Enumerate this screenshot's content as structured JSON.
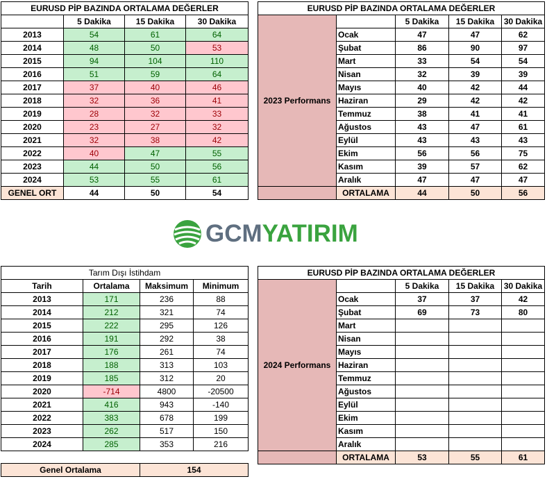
{
  "table1": {
    "title": "EURUSD  PİP BAZINDA ORTALAMA DEĞERLER",
    "headers": [
      "",
      "5 Dakika",
      "15 Dakika",
      "30 Dakika"
    ],
    "rows": [
      {
        "year": "2013",
        "v": [
          "54",
          "61",
          "64"
        ],
        "c": [
          "g",
          "g",
          "g"
        ]
      },
      {
        "year": "2014",
        "v": [
          "48",
          "50",
          "53"
        ],
        "c": [
          "g",
          "g",
          "r"
        ]
      },
      {
        "year": "2015",
        "v": [
          "94",
          "104",
          "110"
        ],
        "c": [
          "g",
          "g",
          "g"
        ]
      },
      {
        "year": "2016",
        "v": [
          "51",
          "59",
          "64"
        ],
        "c": [
          "g",
          "g",
          "g"
        ]
      },
      {
        "year": "2017",
        "v": [
          "37",
          "40",
          "46"
        ],
        "c": [
          "r",
          "r",
          "r"
        ]
      },
      {
        "year": "2018",
        "v": [
          "32",
          "36",
          "41"
        ],
        "c": [
          "r",
          "r",
          "r"
        ]
      },
      {
        "year": "2019",
        "v": [
          "28",
          "32",
          "33"
        ],
        "c": [
          "r",
          "r",
          "r"
        ]
      },
      {
        "year": "2020",
        "v": [
          "23",
          "27",
          "32"
        ],
        "c": [
          "r",
          "r",
          "r"
        ]
      },
      {
        "year": "2021",
        "v": [
          "32",
          "38",
          "42"
        ],
        "c": [
          "r",
          "r",
          "r"
        ]
      },
      {
        "year": "2022",
        "v": [
          "40",
          "47",
          "55"
        ],
        "c": [
          "r",
          "g",
          "g"
        ]
      },
      {
        "year": "2023",
        "v": [
          "44",
          "50",
          "56"
        ],
        "c": [
          "g",
          "g",
          "g"
        ]
      },
      {
        "year": "2024",
        "v": [
          "53",
          "55",
          "61"
        ],
        "c": [
          "g",
          "g",
          "g"
        ]
      }
    ],
    "footer": {
      "label": "GENEL ORT",
      "v": [
        "44",
        "50",
        "54"
      ]
    }
  },
  "table2": {
    "title": "EURUSD  PİP BAZINDA ORTALAMA DEĞERLER",
    "headers": [
      "",
      "",
      "5 Dakika",
      "15 Dakika",
      "30 Dakika"
    ],
    "side_label": "2023 Performans",
    "rows": [
      {
        "m": "Ocak",
        "v": [
          "47",
          "47",
          "62"
        ]
      },
      {
        "m": "Şubat",
        "v": [
          "86",
          "90",
          "97"
        ]
      },
      {
        "m": "Mart",
        "v": [
          "33",
          "54",
          "54"
        ]
      },
      {
        "m": "Nisan",
        "v": [
          "32",
          "39",
          "39"
        ]
      },
      {
        "m": "Mayıs",
        "v": [
          "40",
          "42",
          "44"
        ]
      },
      {
        "m": "Haziran",
        "v": [
          "29",
          "42",
          "42"
        ]
      },
      {
        "m": "Temmuz",
        "v": [
          "38",
          "41",
          "41"
        ]
      },
      {
        "m": "Ağustos",
        "v": [
          "43",
          "47",
          "61"
        ]
      },
      {
        "m": "Eylül",
        "v": [
          "43",
          "43",
          "43"
        ]
      },
      {
        "m": "Ekim",
        "v": [
          "56",
          "56",
          "75"
        ]
      },
      {
        "m": "Kasım",
        "v": [
          "39",
          "57",
          "62"
        ]
      },
      {
        "m": "Aralık",
        "v": [
          "47",
          "47",
          "47"
        ]
      }
    ],
    "footer": {
      "label": "ORTALAMA",
      "v": [
        "44",
        "50",
        "56"
      ]
    }
  },
  "logo": {
    "part1": "GCM",
    "part2": "YATIRIM",
    "color_gray": "#5f6f80",
    "color_green": "#3aa33f"
  },
  "table3": {
    "title": "Tarım Dışı İstihdam",
    "headers": [
      "Tarih",
      "Ortalama",
      "Maksimum",
      "Minimum"
    ],
    "rows": [
      {
        "year": "2013",
        "v": [
          "171",
          "236",
          "88"
        ],
        "c": "g"
      },
      {
        "year": "2014",
        "v": [
          "212",
          "321",
          "74"
        ],
        "c": "g"
      },
      {
        "year": "2015",
        "v": [
          "222",
          "295",
          "126"
        ],
        "c": "g"
      },
      {
        "year": "2016",
        "v": [
          "191",
          "292",
          "38"
        ],
        "c": "g"
      },
      {
        "year": "2017",
        "v": [
          "176",
          "261",
          "74"
        ],
        "c": "g"
      },
      {
        "year": "2018",
        "v": [
          "188",
          "313",
          "103"
        ],
        "c": "g"
      },
      {
        "year": "2019",
        "v": [
          "185",
          "312",
          "20"
        ],
        "c": "g"
      },
      {
        "year": "2020",
        "v": [
          "-714",
          "4800",
          "-20500"
        ],
        "c": "r"
      },
      {
        "year": "2021",
        "v": [
          "416",
          "943",
          "-140"
        ],
        "c": "g"
      },
      {
        "year": "2022",
        "v": [
          "383",
          "678",
          "199"
        ],
        "c": "g"
      },
      {
        "year": "2023",
        "v": [
          "262",
          "517",
          "150"
        ],
        "c": "g"
      },
      {
        "year": "2024",
        "v": [
          "285",
          "353",
          "216"
        ],
        "c": "g"
      }
    ]
  },
  "table4": {
    "title": "EURUSD  PİP BAZINDA ORTALAMA DEĞERLER",
    "headers": [
      "",
      "",
      "5 Dakika",
      "15 Dakika",
      "30 Dakika"
    ],
    "side_label": "2024 Performans",
    "rows": [
      {
        "m": "Ocak",
        "v": [
          "37",
          "37",
          "42"
        ]
      },
      {
        "m": "Şubat",
        "v": [
          "69",
          "73",
          "80"
        ]
      },
      {
        "m": "Mart",
        "v": [
          "",
          "",
          ""
        ]
      },
      {
        "m": "Nisan",
        "v": [
          "",
          "",
          ""
        ]
      },
      {
        "m": "Mayıs",
        "v": [
          "",
          "",
          ""
        ]
      },
      {
        "m": "Haziran",
        "v": [
          "",
          "",
          ""
        ]
      },
      {
        "m": "Temmuz",
        "v": [
          "",
          "",
          ""
        ]
      },
      {
        "m": "Ağustos",
        "v": [
          "",
          "",
          ""
        ]
      },
      {
        "m": "Eylül",
        "v": [
          "",
          "",
          ""
        ]
      },
      {
        "m": "Ekim",
        "v": [
          "",
          "",
          ""
        ]
      },
      {
        "m": "Kasım",
        "v": [
          "",
          "",
          ""
        ]
      },
      {
        "m": "Aralık",
        "v": [
          "",
          "",
          ""
        ]
      }
    ],
    "footer": {
      "label": "ORTALAMA",
      "v": [
        "53",
        "55",
        "61"
      ]
    }
  },
  "table5": {
    "label": "Genel Ortalama",
    "value": "154"
  }
}
